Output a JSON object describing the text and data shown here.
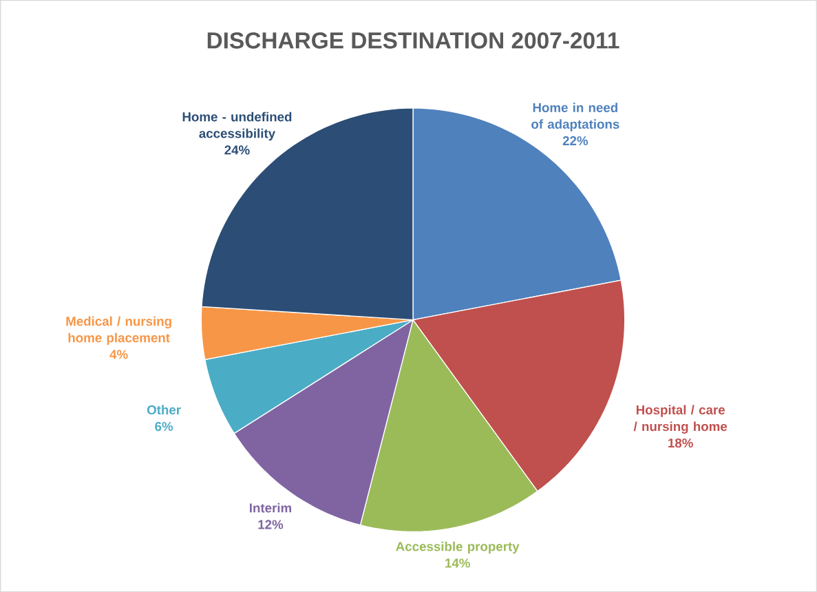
{
  "chart_data": {
    "type": "pie",
    "title": "DISCHARGE DESTINATION 2007-2011",
    "categories": [
      "Home in need of adaptations",
      "Hospital / care / nursing home",
      "Accessible property",
      "Interim",
      "Other",
      "Medical / nursing home placement",
      "Home - undefined accessibility"
    ],
    "values": [
      22,
      18,
      14,
      12,
      6,
      4,
      24
    ],
    "value_labels": [
      "22%",
      "18%",
      "14%",
      "12%",
      "6%",
      "4%",
      "24%"
    ],
    "colors": [
      "#4f81bd",
      "#c0504d",
      "#9bbb59",
      "#8064a2",
      "#4bacc6",
      "#f79646",
      "#2c4d75"
    ]
  }
}
